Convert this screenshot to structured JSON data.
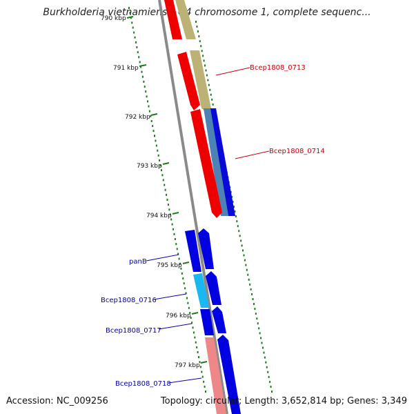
{
  "title": "Burkholderia vietnamiensis G4 chromosome 1, complete sequenc...",
  "accession": "Accession: NC_009256",
  "topology": "Topology: circular; Length: 3,652,814 bp; Genes: 3,349",
  "colors": {
    "forward_genes_label": "#cc0000",
    "reverse_genes_label": "#0000aa",
    "backbone": "#888888",
    "tick": "#1a7a1a"
  },
  "ticks": [
    "790 kbp",
    "791 kbp",
    "792 kbp",
    "793 kbp",
    "794 kbp",
    "795 kbp",
    "796 kbp",
    "797 kbp"
  ],
  "gene_labels_right": [
    "Bcep1808_0713",
    "Bcep1808_0714"
  ],
  "gene_labels_left": [
    "panB",
    "Bcep1808_0716",
    "Bcep1808_0717",
    "Bcep1808_0718"
  ]
}
